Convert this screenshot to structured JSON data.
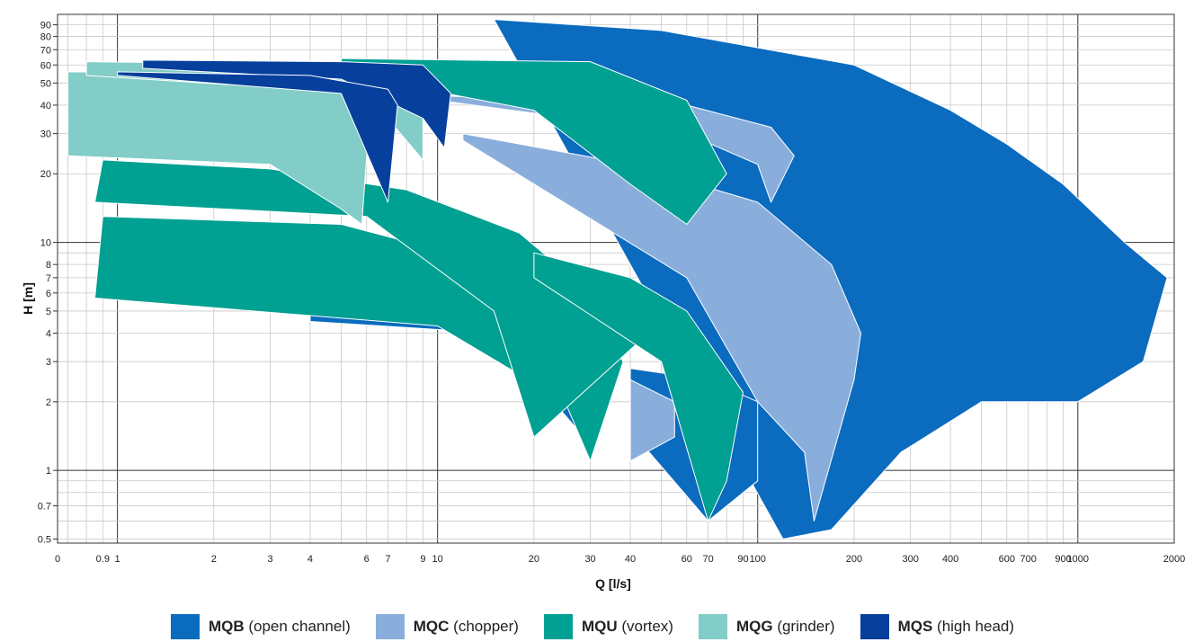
{
  "chart_data": {
    "type": "area",
    "xlabel": "Q [l/s]",
    "ylabel": "H [m]",
    "x_scale": "log",
    "y_scale": "log",
    "xlim": [
      0.65,
      2000
    ],
    "ylim": [
      0.48,
      100
    ],
    "grid": true,
    "legend_position": "bottom",
    "x_ticks": [
      "0",
      "0.9",
      "1",
      "2",
      "3",
      "4",
      "6",
      "7",
      "9",
      "10",
      "20",
      "30",
      "40",
      "60",
      "70",
      "90",
      "100",
      "200",
      "300",
      "400",
      "600",
      "700",
      "900",
      "1000",
      "2000"
    ],
    "y_ticks": [
      "0.5",
      "0.7",
      "1",
      "2",
      "3",
      "4",
      "5",
      "6",
      "7",
      "8",
      "10",
      "20",
      "30",
      "40",
      "50",
      "60",
      "70",
      "80",
      "90"
    ],
    "series": [
      {
        "name": "MQB",
        "color": "#0a6bbf",
        "regions": [
          {
            "top": [
              [
                15,
                95
              ],
              [
                50,
                85
              ],
              [
                200,
                60
              ],
              [
                400,
                38
              ],
              [
                600,
                27
              ],
              [
                900,
                18
              ],
              [
                1400,
                10
              ],
              [
                1900,
                7
              ]
            ],
            "bottom": [
              [
                120,
                0.5
              ],
              [
                170,
                0.55
              ],
              [
                280,
                1.2
              ],
              [
                500,
                2.0
              ],
              [
                1000,
                2.0
              ],
              [
                1600,
                3.0
              ]
            ]
          },
          {
            "top": [
              [
                4,
                6
              ],
              [
                10,
                5.5
              ],
              [
                30,
                4
              ]
            ],
            "bottom": [
              [
                4,
                4.5
              ],
              [
                15,
                4
              ],
              [
                30,
                1.3
              ]
            ]
          },
          {
            "top": [
              [
                40,
                2.8
              ],
              [
                70,
                2.5
              ],
              [
                100,
                2
              ]
            ],
            "bottom": [
              [
                40,
                1.5
              ],
              [
                70,
                0.6
              ],
              [
                100,
                0.9
              ]
            ]
          }
        ]
      },
      {
        "name": "MQC",
        "color": "#8aaedc",
        "regions": [
          {
            "top": [
              [
                12,
                30
              ],
              [
                40,
                22
              ],
              [
                100,
                15
              ],
              [
                170,
                8
              ],
              [
                210,
                4
              ],
              [
                200,
                2.5
              ]
            ],
            "bottom": [
              [
                12,
                28
              ],
              [
                60,
                7
              ],
              [
                100,
                2
              ],
              [
                140,
                1.2
              ],
              [
                150,
                0.6
              ]
            ]
          },
          {
            "top": [
              [
                10,
                44
              ],
              [
                60,
                40
              ],
              [
                110,
                32
              ],
              [
                130,
                24
              ]
            ],
            "bottom": [
              [
                10,
                42
              ],
              [
                60,
                30
              ],
              [
                100,
                22
              ],
              [
                110,
                15
              ]
            ]
          },
          {
            "top": [
              [
                40,
                2.5
              ],
              [
                55,
                2.0
              ]
            ],
            "bottom": [
              [
                40,
                1.1
              ],
              [
                55,
                1.4
              ]
            ]
          }
        ]
      },
      {
        "name": "MQU",
        "color": "#00a092",
        "regions": [
          {
            "top": [
              [
                0.9,
                13
              ],
              [
                5,
                12
              ],
              [
                15,
                8
              ],
              [
                30,
                5
              ],
              [
                38,
                3
              ]
            ],
            "bottom": [
              [
                0.85,
                5.7
              ],
              [
                10,
                4.3
              ],
              [
                25,
                2
              ],
              [
                30,
                1.1
              ]
            ]
          },
          {
            "top": [
              [
                0.9,
                23
              ],
              [
                3,
                21
              ],
              [
                8,
                17
              ],
              [
                18,
                11
              ],
              [
                30,
                6
              ],
              [
                50,
                4.5
              ]
            ],
            "bottom": [
              [
                0.85,
                15
              ],
              [
                6,
                13
              ],
              [
                15,
                5
              ],
              [
                20,
                1.4
              ]
            ]
          },
          {
            "top": [
              [
                5,
                64
              ],
              [
                30,
                62
              ],
              [
                60,
                42
              ],
              [
                80,
                20
              ]
            ],
            "bottom": [
              [
                5,
                55
              ],
              [
                20,
                38
              ],
              [
                40,
                18
              ],
              [
                60,
                12
              ]
            ]
          },
          {
            "top": [
              [
                20,
                9
              ],
              [
                40,
                7
              ],
              [
                60,
                5
              ],
              [
                90,
                2.2
              ]
            ],
            "bottom": [
              [
                20,
                7
              ],
              [
                50,
                3
              ],
              [
                70,
                0.6
              ],
              [
                80,
                0.9
              ]
            ]
          }
        ]
      },
      {
        "name": "MQG",
        "color": "#82cdc7",
        "regions": [
          {
            "top": [
              [
                0.7,
                56
              ],
              [
                3,
                55
              ],
              [
                6,
                50
              ],
              [
                6.2,
                45
              ]
            ],
            "bottom": [
              [
                0.7,
                24
              ],
              [
                3,
                22
              ],
              [
                5,
                14
              ],
              [
                5.8,
                12
              ]
            ]
          },
          {
            "top": [
              [
                0.8,
                62
              ],
              [
                5,
                60
              ],
              [
                9,
                55
              ]
            ],
            "bottom": [
              [
                0.8,
                54
              ],
              [
                6,
                45
              ],
              [
                9,
                23
              ]
            ]
          }
        ]
      },
      {
        "name": "MQS",
        "color": "#063f9c",
        "regions": [
          {
            "top": [
              [
                1.2,
                63
              ],
              [
                5,
                62
              ],
              [
                9,
                60
              ],
              [
                11,
                45
              ]
            ],
            "bottom": [
              [
                1.2,
                58
              ],
              [
                5,
                52
              ],
              [
                9,
                35
              ],
              [
                10.5,
                26
              ]
            ]
          },
          {
            "top": [
              [
                1,
                56
              ],
              [
                4,
                54
              ],
              [
                7,
                47
              ],
              [
                7.5,
                40
              ]
            ],
            "bottom": [
              [
                1,
                54
              ],
              [
                5,
                45
              ],
              [
                7,
                15
              ]
            ]
          }
        ]
      }
    ]
  },
  "legend": [
    {
      "code": "MQB",
      "label": "(open channel)",
      "color": "#0a6bbf"
    },
    {
      "code": "MQC",
      "label": "(chopper)",
      "color": "#8aaedc"
    },
    {
      "code": "MQU",
      "label": "(vortex)",
      "color": "#00a092"
    },
    {
      "code": "MQG",
      "label": "(grinder)",
      "color": "#82cdc7"
    },
    {
      "code": "MQS",
      "label": "(high head)",
      "color": "#063f9c"
    }
  ]
}
